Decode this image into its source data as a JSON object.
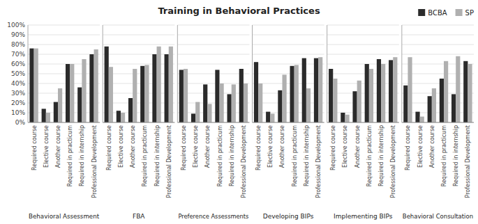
{
  "chart_data": [
    {
      "type": "bar",
      "title": "Training in Behavioral Practices",
      "x_label": "Behavioral Assessment",
      "categories": [
        "Required course",
        "Elective course",
        "Another course",
        "Required in practicum",
        "Required in internship",
        "Professional Development"
      ],
      "series": [
        {
          "color": "#2b2b2b",
          "values": [
            76,
            14,
            21,
            60,
            36,
            70
          ]
        },
        {
          "color": "#b0b0b0",
          "values": [
            76,
            10,
            35,
            60,
            65,
            75
          ]
        }
      ],
      "ylim": [
        0,
        100
      ],
      "yticks": [
        {
          "value": 0,
          "label": "0%"
        },
        {
          "value": 10,
          "label": "10%"
        },
        {
          "value": 20,
          "label": "20%"
        },
        {
          "value": 30,
          "label": "30%"
        },
        {
          "value": 40,
          "label": "40%"
        },
        {
          "value": 50,
          "label": "50%"
        },
        {
          "value": 60,
          "label": "60%"
        },
        {
          "value": 70,
          "label": "70%"
        },
        {
          "value": 80,
          "label": "80%"
        },
        {
          "value": 90,
          "label": "90%"
        },
        {
          "value": 100,
          "label": "100%"
        }
      ],
      "grid": true,
      "tick_labels": true
    },
    {
      "type": "bar",
      "x_label": "FBA",
      "categories": [
        "Required course",
        "Elective course",
        "Another course",
        "Required in practicum",
        "Required in internship",
        "Professional Development"
      ],
      "series": [
        {
          "color": "#2b2b2b",
          "values": [
            78,
            12,
            25,
            58,
            70,
            70
          ]
        },
        {
          "color": "#b0b0b0",
          "values": [
            57,
            10,
            55,
            59,
            78,
            78
          ]
        }
      ],
      "ylim": [
        0,
        100
      ],
      "yticks": [
        0,
        10,
        20,
        30,
        40,
        50,
        60,
        70,
        80,
        90,
        100
      ],
      "grid": true,
      "tick_labels": "x"
    },
    {
      "type": "bar",
      "x_label": "Preference Assessments",
      "categories": [
        "Required course",
        "Elective course",
        "Another course",
        "Required in practicum",
        "Required in internship",
        "Professional Development"
      ],
      "series": [
        {
          "color": "#2b2b2b",
          "values": [
            54,
            9,
            39,
            54,
            29,
            55
          ]
        },
        {
          "color": "#b0b0b0",
          "values": [
            55,
            21,
            19,
            40,
            39,
            40
          ]
        }
      ],
      "ylim": [
        0,
        100
      ],
      "yticks": [
        0,
        10,
        20,
        30,
        40,
        50,
        60,
        70,
        80,
        90,
        100
      ],
      "grid": true,
      "tick_labels": "x"
    },
    {
      "type": "bar",
      "x_label": "Developing BIPs",
      "categories": [
        "Required course",
        "Elective course",
        "Another course",
        "Required in practicum",
        "Required in internship",
        "Professional Development"
      ],
      "series": [
        {
          "color": "#2b2b2b",
          "values": [
            62,
            11,
            33,
            58,
            66,
            66
          ]
        },
        {
          "color": "#b0b0b0",
          "values": [
            40,
            9,
            49,
            59,
            35,
            67
          ]
        }
      ],
      "ylim": [
        0,
        100
      ],
      "yticks": [
        0,
        10,
        20,
        30,
        40,
        50,
        60,
        70,
        80,
        90,
        100
      ],
      "grid": true,
      "tick_labels": "x"
    },
    {
      "type": "bar",
      "x_label": "Implementing BIPs",
      "categories": [
        "Required course",
        "Elective course",
        "Another course",
        "Required in practicum",
        "Required in internship",
        "Professional Development"
      ],
      "series": [
        {
          "name": "BCBA",
          "color": "#2b2b2b",
          "values": [
            55,
            10,
            32,
            60,
            65,
            64
          ]
        },
        {
          "name": "SP",
          "color": "#b0b0b0",
          "values": [
            45,
            8,
            43,
            55,
            60,
            67
          ]
        }
      ],
      "ylim": [
        0,
        100
      ],
      "yticks": [
        0,
        10,
        20,
        30,
        40,
        50,
        60,
        70,
        80,
        90,
        100
      ],
      "grid": true,
      "tick_labels": "x",
      "legend": "upper right"
    },
    {
      "type": "bar",
      "x_label": "Behavioral Consultation",
      "categories": [
        "Required course",
        "Elective course",
        "Another course",
        "Required in practicum",
        "Required in internship",
        "Professional Development"
      ],
      "series": [
        {
          "color": "#2b2b2b",
          "values": [
            38,
            11,
            27,
            45,
            29,
            63
          ]
        },
        {
          "color": "#b0b0b0",
          "values": [
            67,
            6,
            35,
            63,
            68,
            60
          ]
        }
      ],
      "ylim": [
        0,
        100
      ],
      "yticks": [
        0,
        10,
        20,
        30,
        40,
        50,
        60,
        70,
        80,
        90,
        100
      ],
      "grid": true,
      "tick_labels": "x"
    }
  ]
}
